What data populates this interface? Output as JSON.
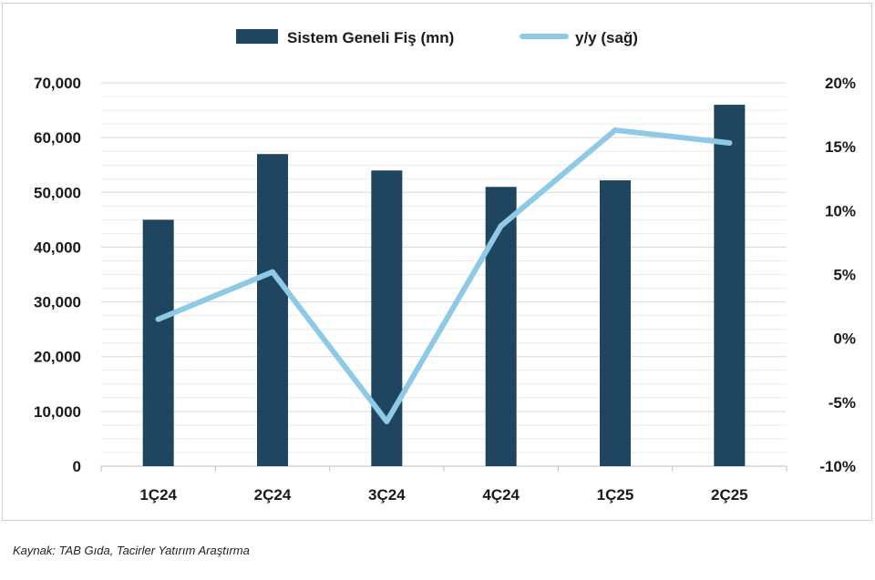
{
  "chart_data": {
    "type": "bar",
    "categories": [
      "1Ç24",
      "2Ç24",
      "3Ç24",
      "4Ç24",
      "1Ç25",
      "2Ç25"
    ],
    "series": [
      {
        "name": "Sistem Geneli Fiş (mn)",
        "type": "bar",
        "axis": "left",
        "values": [
          45000,
          57000,
          54000,
          51000,
          52200,
          66000
        ],
        "color": "#1f4560"
      },
      {
        "name": "y/y (sağ)",
        "type": "line",
        "axis": "right",
        "values": [
          1.5,
          5.2,
          -6.5,
          8.8,
          16.3,
          15.3
        ],
        "color": "#8ecae6"
      }
    ],
    "y_left": {
      "lim": [
        0,
        70000
      ],
      "ticks": [
        0,
        10000,
        20000,
        30000,
        40000,
        50000,
        60000,
        70000
      ],
      "tick_labels": [
        "0",
        "10,000",
        "20,000",
        "30,000",
        "40,000",
        "50,000",
        "60,000",
        "70,000"
      ]
    },
    "y_right": {
      "lim": [
        -10,
        20
      ],
      "ticks": [
        -10,
        -5,
        0,
        5,
        10,
        15,
        20
      ],
      "tick_labels": [
        "-10%",
        "-5%",
        "0%",
        "5%",
        "10%",
        "15%",
        "20%"
      ]
    },
    "grid": true,
    "legend": "top-center"
  },
  "source": "Kaynak: TAB Gıda, Tacirler Yatırım Araştırma"
}
